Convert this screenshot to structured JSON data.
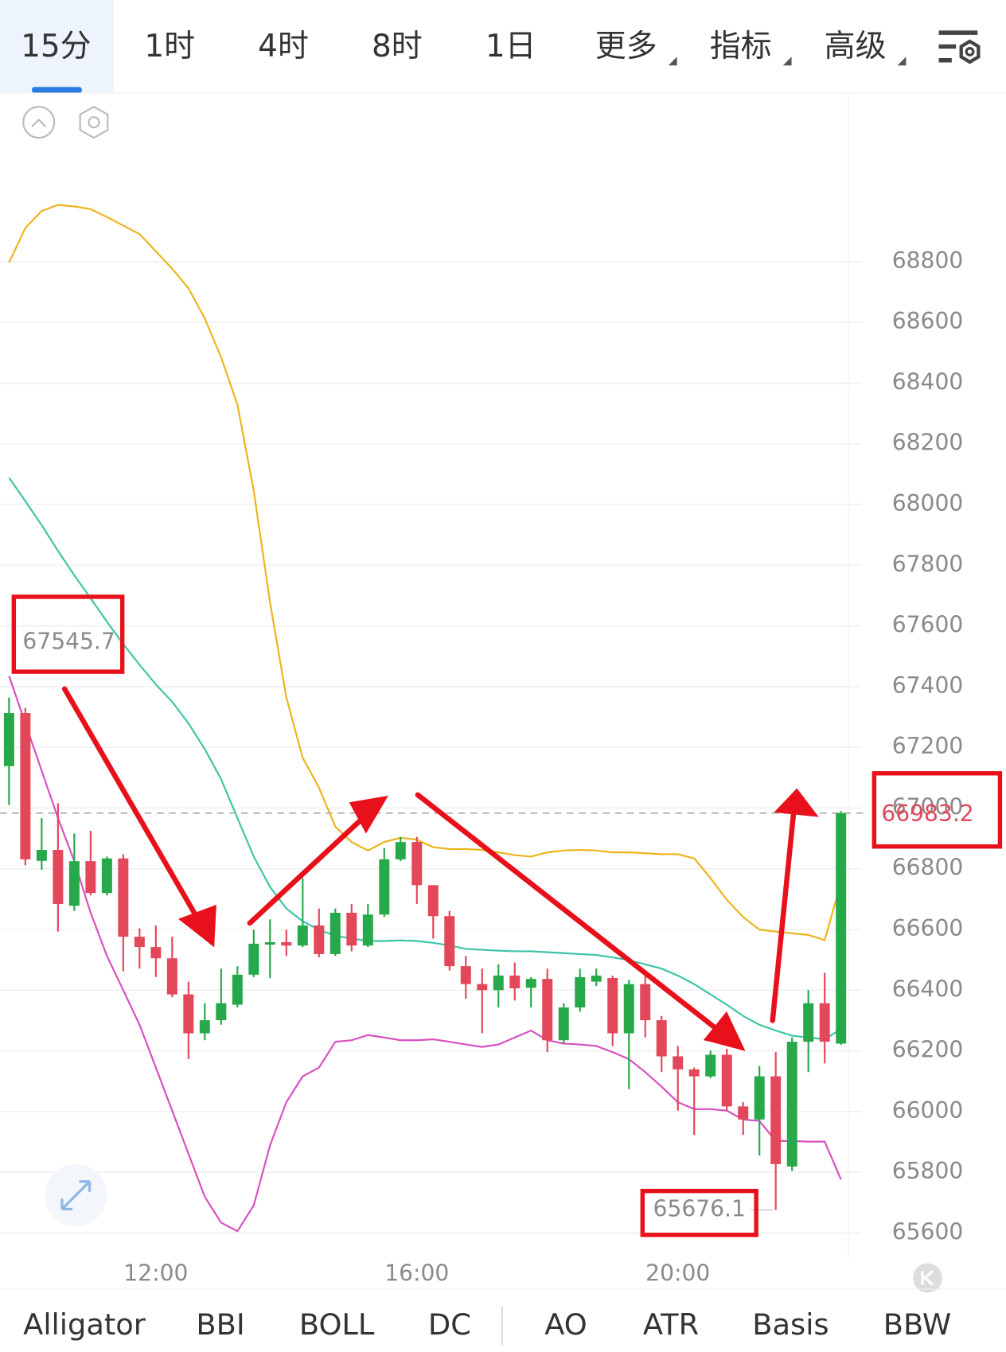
{
  "top_tabs": {
    "items": [
      "15分",
      "1时",
      "4时",
      "8时",
      "1日",
      "更多",
      "指标",
      "高级"
    ],
    "selected": 0
  },
  "chart_data": {
    "type": "candlestick",
    "categories": [
      null,
      null,
      null,
      null,
      null,
      null,
      null,
      null,
      null,
      "12:00",
      null,
      null,
      null,
      null,
      null,
      null,
      null,
      null,
      null,
      null,
      null,
      null,
      null,
      null,
      null,
      "16:00",
      null,
      null,
      null,
      null,
      null,
      null,
      null,
      null,
      null,
      null,
      null,
      null,
      null,
      null,
      null,
      "20:00",
      null,
      null,
      null,
      null,
      null,
      null,
      null,
      null,
      null,
      null
    ],
    "open": [
      67138,
      67313,
      66826,
      66862,
      66678,
      66825,
      66720,
      66834,
      66576,
      66542,
      66505,
      66386,
      66258,
      66301,
      66352,
      66451,
      66550,
      66558,
      66547,
      66613,
      66519,
      66655,
      66547,
      66649,
      66831,
      66888,
      66746,
      66644,
      66479,
      66420,
      66400,
      66448,
      66408,
      66437,
      66235,
      66343,
      66428,
      66440,
      66258,
      66420,
      66301,
      66182,
      66139,
      66116,
      66187,
      66017,
      65974,
      66116,
      65819,
      66230,
      66357,
      66224
    ],
    "high": [
      67364,
      67330,
      66967,
      67016,
      66916,
      66925,
      66840,
      66848,
      66604,
      66613,
      66576,
      66428,
      66357,
      66471,
      66479,
      66599,
      66633,
      66599,
      66769,
      66669,
      66669,
      66684,
      66684,
      66868,
      66905,
      66905,
      66746,
      66661,
      66513,
      66471,
      66485,
      66491,
      66443,
      66471,
      66357,
      66471,
      66471,
      66448,
      66434,
      66448,
      66315,
      66216,
      66145,
      66201,
      66207,
      66031,
      66150,
      66196,
      66244,
      66400,
      66457,
      66990
    ],
    "low": [
      67010,
      66811,
      66797,
      66593,
      66661,
      66712,
      66712,
      66462,
      66471,
      66443,
      66377,
      66173,
      66235,
      66286,
      66343,
      66443,
      66440,
      66513,
      66542,
      66508,
      66513,
      66528,
      66542,
      66641,
      66825,
      66684,
      66570,
      66465,
      66372,
      66258,
      66343,
      66366,
      66343,
      66196,
      66224,
      66329,
      66414,
      66216,
      66074,
      66244,
      66130,
      66003,
      65923,
      66110,
      66003,
      65923,
      65855,
      65676.1,
      65804,
      66130,
      66159,
      66220
    ],
    "close": [
      67313,
      66831,
      66862,
      66684,
      66825,
      66720,
      66834,
      66576,
      66542,
      66505,
      66386,
      66258,
      66301,
      66357,
      66451,
      66553,
      66558,
      66547,
      66613,
      66519,
      66655,
      66547,
      66649,
      66831,
      66888,
      66746,
      66644,
      66479,
      66420,
      66400,
      66448,
      66406,
      66437,
      66235,
      66343,
      66443,
      66448,
      66258,
      66420,
      66301,
      66182,
      66139,
      66116,
      66187,
      66017,
      65974,
      66116,
      65827,
      66230,
      66357,
      66230,
      66983.2
    ],
    "up_color": "#27a84a",
    "down_color": "#e2475a",
    "series": [
      {
        "color": "#ecb41a",
        "values": [
          68797,
          68911,
          68967,
          68987,
          68982,
          68973,
          68947,
          68919,
          68891,
          68834,
          68777,
          68712,
          68613,
          68485,
          68329,
          68045,
          67677,
          67364,
          67166,
          67067,
          66939,
          66888,
          66860,
          66888,
          66902,
          66896,
          66871,
          66865,
          66865,
          66862,
          66854,
          66845,
          66840,
          66854,
          66860,
          66862,
          66860,
          66854,
          66854,
          66851,
          66848,
          66848,
          66834,
          66769,
          66698,
          66641,
          66599,
          66593,
          66587,
          66582,
          66565,
          66755
        ]
      },
      {
        "color": "#3cc4a5",
        "values": [
          68088,
          68011,
          67932,
          67847,
          67767,
          67691,
          67614,
          67540,
          67472,
          67407,
          67350,
          67279,
          67194,
          67095,
          66967,
          66840,
          66740,
          66669,
          66627,
          66599,
          66579,
          66570,
          66562,
          66562,
          66564,
          66562,
          66556,
          66547,
          66536,
          66533,
          66530,
          66528,
          66528,
          66525,
          66522,
          66519,
          66516,
          66508,
          66499,
          66485,
          66471,
          66448,
          66420,
          66386,
          66352,
          66315,
          66286,
          66267,
          66250,
          66244,
          66238,
          66272
        ]
      },
      {
        "color": "#d84fc0",
        "values": [
          67435,
          67279,
          67123,
          66967,
          66825,
          66655,
          66513,
          66400,
          66286,
          66145,
          66003,
          65861,
          65719,
          65634,
          65606,
          65691,
          65889,
          66031,
          66116,
          66145,
          66230,
          66235,
          66252,
          66244,
          66235,
          66235,
          66238,
          66230,
          66221,
          66213,
          66221,
          66244,
          66267,
          66235,
          66224,
          66221,
          66216,
          66196,
          66173,
          66130,
          66082,
          66031,
          66008,
          66008,
          66003,
          65974,
          65969,
          65903,
          65903,
          65901,
          65901,
          65776
        ]
      }
    ],
    "last_price": 66983.2,
    "last_price_color": "#e2475a",
    "annotations": [
      {
        "value": 67545.7
      },
      {
        "value": 65676.1
      }
    ],
    "ylim": [
      65520,
      69350
    ],
    "yticks": [
      65600,
      65800,
      66000,
      66200,
      66400,
      66600,
      66800,
      67000,
      67200,
      67400,
      67600,
      67800,
      68000,
      68200,
      68400,
      68600,
      68800
    ],
    "grid": true
  },
  "indicator_tabs": {
    "items": [
      "Alligator",
      "BBI",
      "BOLL",
      "DC",
      "AO",
      "ATR",
      "Basis",
      "BBW"
    ],
    "selected": 2
  }
}
